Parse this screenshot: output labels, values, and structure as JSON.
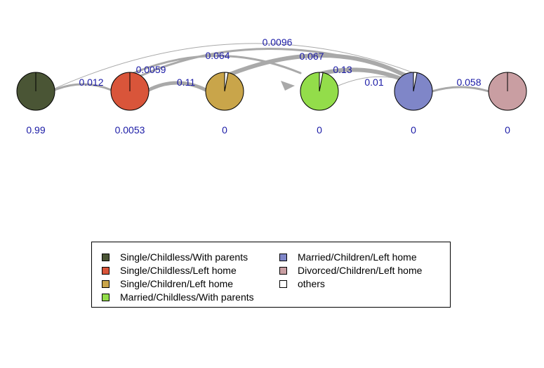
{
  "states": [
    {
      "label": "Single/Childless/With parents",
      "color": "#4a5535",
      "initial_prob": "0.99",
      "self_prob": 1.0
    },
    {
      "label": "Single/Childless/Left home",
      "color": "#d9553a",
      "initial_prob": "0.0053",
      "self_prob": 1.0
    },
    {
      "label": "Single/Children/Left home",
      "color": "#c9a54a",
      "initial_prob": "0",
      "self_prob": 0.97
    },
    {
      "label": "Married/Childless/With parents",
      "color": "#93dd4a",
      "initial_prob": "0",
      "self_prob": 0.97
    },
    {
      "label": "Married/Children/Left home",
      "color": "#7f86c8",
      "initial_prob": "0",
      "self_prob": 0.97
    },
    {
      "label": "Divorced/Children/Left home",
      "color": "#c99ea2",
      "initial_prob": "0",
      "self_prob": 1.0
    }
  ],
  "others": {
    "label": "others",
    "color": "#ffffff"
  },
  "transitions": [
    {
      "from": 0,
      "to": 1,
      "label": "0.012"
    },
    {
      "from": 1,
      "to": 2,
      "label": "0.11"
    },
    {
      "from": 1,
      "to": 3,
      "label": "0.064"
    },
    {
      "from": 0,
      "to": 4,
      "label": "0.0096"
    },
    {
      "from": 1,
      "to": 4,
      "label": "0.0059"
    },
    {
      "from": 2,
      "to": 4,
      "label": "0.067"
    },
    {
      "from": 3,
      "to": 4,
      "label": "0.13"
    },
    {
      "from": 3,
      "to": 4,
      "label": "0.01"
    },
    {
      "from": 4,
      "to": 5,
      "label": "0.058"
    }
  ],
  "text_color": "#1a1aa6",
  "edge_color": "#a9a9a9"
}
